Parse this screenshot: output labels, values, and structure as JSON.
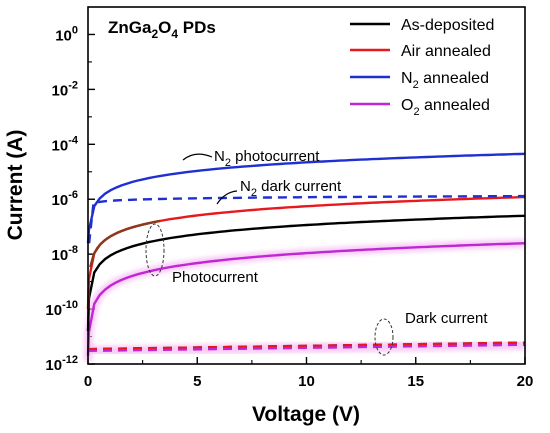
{
  "chart_data": {
    "type": "line",
    "title_parts": [
      "ZnGa",
      "2",
      "O",
      "4",
      " PDs"
    ],
    "xlabel": "Voltage (V)",
    "ylabel": "Current (A)",
    "xlim": [
      0,
      20
    ],
    "ylim_log10": [
      -12,
      1
    ],
    "y_scale": "log",
    "x_ticks": [
      0,
      5,
      10,
      15,
      20
    ],
    "y_ticks": [
      {
        "base": "10",
        "exp": "0",
        "value": 0
      },
      {
        "base": "10",
        "exp": "-2",
        "value": -2
      },
      {
        "base": "10",
        "exp": "-4",
        "value": -4
      },
      {
        "base": "10",
        "exp": "-6",
        "value": -6
      },
      {
        "base": "10",
        "exp": "-8",
        "value": -8
      },
      {
        "base": "10",
        "exp": "-10",
        "value": -10
      },
      {
        "base": "10",
        "exp": "-12",
        "value": -12
      }
    ],
    "legend_position": "top-right",
    "series": [
      {
        "name": "As-deposited",
        "color": "#000000",
        "photocurrent": {
          "at_0_5V": 4e-09,
          "at_20V": 2.5e-07
        },
        "dark_current": {
          "at_0V": 3.5e-12,
          "at_20V": 6e-12
        }
      },
      {
        "name": "Air annealed",
        "color": "#e8191c",
        "photocurrent": {
          "at_0_5V": 2e-08,
          "at_20V": 1.2e-06
        },
        "dark_current": {
          "at_0V": 3.5e-12,
          "at_20V": 6e-12
        }
      },
      {
        "name_parts": [
          "N",
          "2",
          " annealed"
        ],
        "color": "#1f2fd1",
        "photocurrent": {
          "at_0_5V": 1e-06,
          "at_20V": 4.5e-05
        },
        "dark_current": {
          "at_0V": 1e-07,
          "at_20V": 1.3e-06
        }
      },
      {
        "name_parts": [
          "O",
          "2",
          " annealed"
        ],
        "color": "#c026d3",
        "photocurrent": {
          "at_0_5V": 3e-10,
          "at_20V": 2.5e-08
        },
        "dark_current": {
          "at_0V": 3e-12,
          "at_20V": 5e-12
        }
      }
    ],
    "annotations": {
      "n2_photo": [
        "N",
        "2",
        " photocurrent"
      ],
      "n2_dark": [
        "N",
        "2",
        " dark current"
      ],
      "photocurrent": "Photocurrent",
      "dark_current": "Dark current"
    }
  }
}
